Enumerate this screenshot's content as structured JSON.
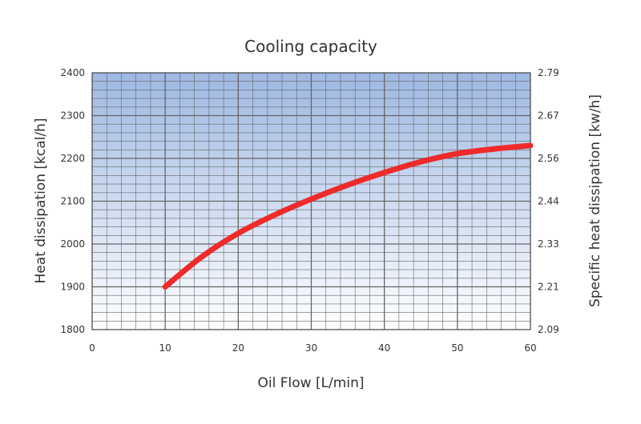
{
  "chart_data": {
    "type": "line",
    "title": "Cooling capacity",
    "xlabel": "Oil Flow [L/min]",
    "ylabel": "Heat dissipation [kcal/h]",
    "y2label": "Specific heat dissipation [kw/h]",
    "xlim": [
      0,
      60
    ],
    "ylim": [
      1800,
      2400
    ],
    "x_ticks": [
      "0",
      "10",
      "20",
      "30",
      "40",
      "50",
      "60"
    ],
    "y_ticks": [
      "1800",
      "1900",
      "2000",
      "2100",
      "2200",
      "2300",
      "2400"
    ],
    "y2_ticks": [
      "2.09",
      "2.21",
      "2.33",
      "2.44",
      "2.56",
      "2.67",
      "2.79"
    ],
    "grid": true,
    "colors": {
      "line": "#ee2a2a",
      "plot_top": "#9db8e2",
      "plot_bottom": "#ffffff",
      "grid": "#666666"
    },
    "series": [
      {
        "x": [
          10,
          15,
          20,
          25,
          30,
          35,
          40,
          45,
          50,
          55,
          60
        ],
        "values": [
          1900,
          1970,
          2025,
          2068,
          2105,
          2138,
          2167,
          2192,
          2211,
          2222,
          2230
        ]
      }
    ]
  }
}
